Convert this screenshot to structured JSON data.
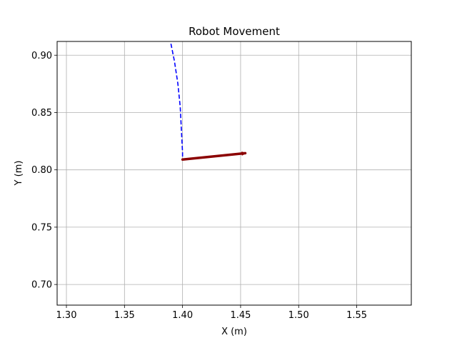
{
  "chart_data": {
    "type": "line",
    "title": "Robot Movement",
    "xlabel": "X (m)",
    "ylabel": "Y (m)",
    "xlim": [
      1.292,
      1.597
    ],
    "ylim": [
      0.682,
      0.912
    ],
    "xticks": [
      1.3,
      1.35,
      1.4,
      1.45,
      1.5,
      1.55
    ],
    "xtick_labels": [
      "1.30",
      "1.35",
      "1.40",
      "1.45",
      "1.50",
      "1.55"
    ],
    "yticks": [
      0.7,
      0.75,
      0.8,
      0.85,
      0.9
    ],
    "ytick_labels": [
      "0.70",
      "0.75",
      "0.80",
      "0.85",
      "0.90"
    ],
    "grid": true,
    "series": [
      {
        "style": "dashed",
        "color": "#0000ff",
        "x": [
          1.39,
          1.393,
          1.396,
          1.398,
          1.399,
          1.4,
          1.4
        ],
        "y": [
          0.91,
          0.895,
          0.875,
          0.855,
          0.835,
          0.815,
          0.81
        ]
      },
      {
        "style": "arrow",
        "color": "#8b0000",
        "x": [
          1.4,
          1.454
        ],
        "y": [
          0.809,
          0.8145
        ]
      }
    ]
  }
}
